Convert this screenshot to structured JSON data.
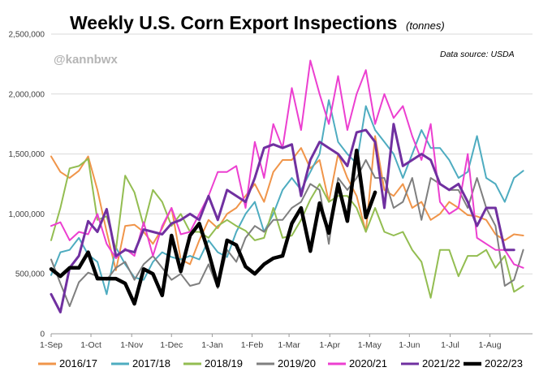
{
  "chart_data": {
    "type": "line",
    "title": "Weekly U.S. Corn Export Inspections",
    "subtitle": "(tonnes)",
    "watermark": "@kannbwx",
    "source": "Data source: USDA",
    "ylim": [
      0,
      2500000
    ],
    "y_ticks": [
      0,
      500000,
      1000000,
      1500000,
      2000000,
      2500000
    ],
    "y_tick_labels": [
      "0",
      "500,000",
      "1,000,000",
      "1,500,000",
      "2,000,000",
      "2,500,000"
    ],
    "x_tick_labels": [
      "1-Sep",
      "1-Oct",
      "1-Nov",
      "1-Dec",
      "1-Jan",
      "1-Feb",
      "1-Mar",
      "1-Apr",
      "1-May",
      "1-Jun",
      "1-Jul",
      "1-Aug"
    ],
    "x_tick_weeks": [
      0,
      4.3,
      8.7,
      13,
      17.4,
      21.7,
      25.7,
      30.1,
      34.4,
      38.7,
      43.1,
      47.4
    ],
    "x_range_weeks": [
      0,
      52
    ],
    "legend_position": "bottom",
    "series": [
      {
        "name": "2016/17",
        "color": "#f0954a",
        "width": 2,
        "values": [
          1480000,
          1350000,
          1300000,
          1360000,
          1480000,
          1200000,
          850000,
          530000,
          900000,
          910000,
          850000,
          750000,
          880000,
          1050000,
          620000,
          580000,
          780000,
          950000,
          880000,
          1000000,
          1050000,
          1150000,
          1250000,
          1100000,
          1350000,
          1450000,
          1450000,
          1550000,
          1380000,
          1450000,
          1100000,
          1500000,
          1300000,
          1150000,
          850000,
          1650000,
          1200000,
          1150000,
          1250000,
          1050000,
          1100000,
          950000,
          1000000,
          1100000,
          1050000,
          990000,
          980000,
          950000,
          830000,
          780000,
          830000,
          820000
        ]
      },
      {
        "name": "2017/18",
        "color": "#4eacc0",
        "width": 2,
        "values": [
          490000,
          680000,
          700000,
          800000,
          660000,
          600000,
          330000,
          720000,
          580000,
          470000,
          450000,
          600000,
          680000,
          640000,
          620000,
          650000,
          620000,
          780000,
          680000,
          640000,
          850000,
          1000000,
          1100000,
          850000,
          1000000,
          1200000,
          1300000,
          1200000,
          1350000,
          1500000,
          1950000,
          1600000,
          1500000,
          1420000,
          1900000,
          1700000,
          1600000,
          1500000,
          1300000,
          1500000,
          1700000,
          1550000,
          1550000,
          1450000,
          1300000,
          1350000,
          1650000,
          1300000,
          1250000,
          1100000,
          1300000,
          1360000
        ]
      },
      {
        "name": "2018/19",
        "color": "#93bd51",
        "width": 2,
        "values": [
          780000,
          1050000,
          1380000,
          1400000,
          1460000,
          950000,
          980000,
          700000,
          1320000,
          1180000,
          900000,
          1200000,
          1100000,
          900000,
          1000000,
          850000,
          850000,
          800000,
          900000,
          950000,
          900000,
          860000,
          780000,
          800000,
          1050000,
          800000,
          820000,
          950000,
          1120000,
          1250000,
          1100000,
          1150000,
          1150000,
          1050000,
          850000,
          1050000,
          850000,
          820000,
          850000,
          700000,
          600000,
          300000,
          700000,
          700000,
          480000,
          650000,
          650000,
          700000,
          550000,
          650000,
          350000,
          400000
        ]
      },
      {
        "name": "2019/20",
        "color": "#7f7f7f",
        "width": 2,
        "values": [
          620000,
          420000,
          230000,
          430000,
          510000,
          480000,
          450000,
          550000,
          600000,
          450000,
          580000,
          650000,
          550000,
          450000,
          500000,
          400000,
          420000,
          580000,
          380000,
          700000,
          600000,
          800000,
          900000,
          850000,
          950000,
          950000,
          1050000,
          1100000,
          1250000,
          1200000,
          750000,
          1300000,
          1200000,
          1300000,
          1450000,
          1300000,
          1300000,
          1050000,
          1100000,
          1300000,
          950000,
          1300000,
          1250000,
          1200000,
          1200000,
          1050000,
          1300000,
          1050000,
          900000,
          400000,
          450000,
          700000
        ]
      },
      {
        "name": "2020/21",
        "color": "#ec3fd0",
        "width": 2,
        "values": [
          900000,
          930000,
          780000,
          850000,
          830000,
          1000000,
          750000,
          630000,
          710000,
          650000,
          930000,
          650000,
          900000,
          1050000,
          830000,
          850000,
          1000000,
          1150000,
          1350000,
          1350000,
          1400000,
          1050000,
          1600000,
          1300000,
          1750000,
          1550000,
          2050000,
          1700000,
          2280000,
          2000000,
          1750000,
          2150000,
          1700000,
          2000000,
          2200000,
          1750000,
          2000000,
          1800000,
          1900000,
          1650000,
          1450000,
          1750000,
          1100000,
          1000000,
          1050000,
          1500000,
          800000,
          750000,
          700000,
          700000,
          580000,
          550000
        ]
      },
      {
        "name": "2021/22",
        "color": "#7030a0",
        "width": 3,
        "values": [
          330000,
          180000,
          550000,
          650000,
          940000,
          850000,
          1040000,
          650000,
          700000,
          680000,
          870000,
          850000,
          830000,
          920000,
          950000,
          1000000,
          950000,
          1150000,
          950000,
          1200000,
          1150000,
          1100000,
          1300000,
          1550000,
          1580000,
          1550000,
          1580000,
          1150000,
          1450000,
          1600000,
          1550000,
          1500000,
          1400000,
          1680000,
          1700000,
          1600000,
          1050000,
          1750000,
          1400000,
          1450000,
          1500000,
          1450000,
          1250000,
          1200000,
          1250000,
          1100000,
          900000,
          1050000,
          1050000,
          700000,
          700000
        ]
      },
      {
        "name": "2022/23",
        "color": "#000000",
        "width": 4.5,
        "values": [
          540000,
          480000,
          550000,
          550000,
          680000,
          460000,
          460000,
          460000,
          420000,
          250000,
          540000,
          500000,
          320000,
          820000,
          520000,
          820000,
          920000,
          680000,
          400000,
          780000,
          740000,
          560000,
          500000,
          580000,
          630000,
          650000,
          920000,
          1050000,
          690000,
          1090000,
          840000,
          1250000,
          940000,
          1530000,
          970000,
          1180000
        ]
      }
    ]
  }
}
